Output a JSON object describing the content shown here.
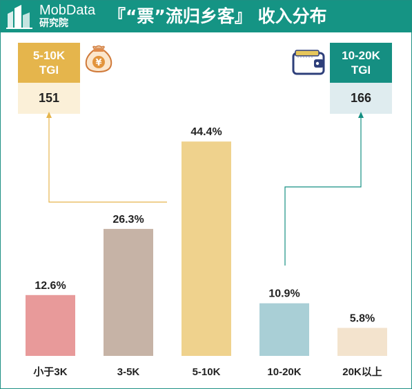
{
  "header": {
    "brand_name": "MobData",
    "brand_sub": "研究院",
    "title": "『“票”流归乡客』 收入分布"
  },
  "callouts": {
    "left": {
      "range": "5-10K",
      "metric": "TGI",
      "value": "151",
      "icon": "money-bag-icon"
    },
    "right": {
      "range": "10-20K",
      "metric": "TGI",
      "value": "166",
      "icon": "wallet-icon"
    }
  },
  "colors": {
    "header_bg": "#159484",
    "left_accent": "#e5b54c",
    "right_accent": "#158f82",
    "bars": [
      "#e89a9a",
      "#c6b3a6",
      "#efd28d",
      "#a9cfd6",
      "#f3e3cd"
    ]
  },
  "chart_data": {
    "type": "bar",
    "categories": [
      "小于3K",
      "3-5K",
      "5-10K",
      "10-20K",
      "20K以上"
    ],
    "values": [
      12.6,
      26.3,
      44.4,
      10.9,
      5.8
    ],
    "value_labels": [
      "12.6%",
      "26.3%",
      "44.4%",
      "10.9%",
      "5.8%"
    ],
    "unit": "%",
    "ylim": [
      0,
      50
    ],
    "grid": false,
    "legend": "none"
  }
}
